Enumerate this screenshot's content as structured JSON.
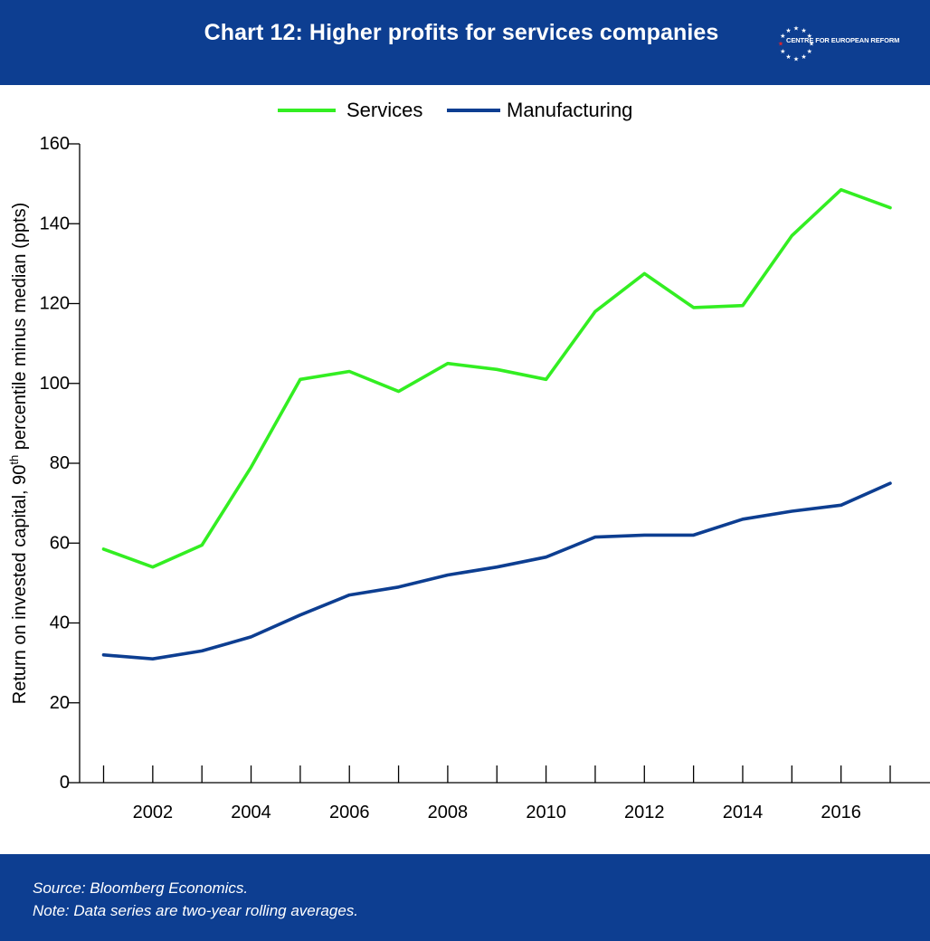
{
  "header": {
    "title": "Chart 12: Higher profits for services companies",
    "logo_text": "CENTRE FOR EUROPEAN REFORM"
  },
  "footer": {
    "source": "Source: Bloomberg Economics.",
    "note": "Note: Data series are two-year rolling averages."
  },
  "colors": {
    "brand": "#0d3e91",
    "services": "#33ee22",
    "manufacturing": "#0d3e91",
    "logo_accent": "#e2242a"
  },
  "chart_data": {
    "type": "line",
    "ylabel": "Return on invested capital, 90th percentile minus median (ppts)",
    "ylim": [
      0,
      160
    ],
    "yticks": [
      0,
      20,
      40,
      60,
      80,
      100,
      120,
      140,
      160
    ],
    "xticks": [
      "2002",
      "2004",
      "2006",
      "2008",
      "2010",
      "2012",
      "2014",
      "2016"
    ],
    "x": [
      2001,
      2002,
      2003,
      2004,
      2005,
      2006,
      2007,
      2008,
      2009,
      2010,
      2011,
      2012,
      2013,
      2014,
      2015,
      2016,
      2017
    ],
    "legend": "top-center",
    "series": [
      {
        "name": "Services",
        "values": [
          58.5,
          54,
          59.5,
          79,
          101,
          103,
          98,
          105,
          103.5,
          101,
          118,
          127.5,
          119,
          119.5,
          137,
          148.5,
          144
        ]
      },
      {
        "name": "Manufacturing",
        "values": [
          32,
          31,
          33,
          36.5,
          42,
          47,
          49,
          52,
          54,
          56.5,
          61.5,
          62,
          62,
          66,
          68,
          69.5,
          75
        ]
      }
    ]
  }
}
